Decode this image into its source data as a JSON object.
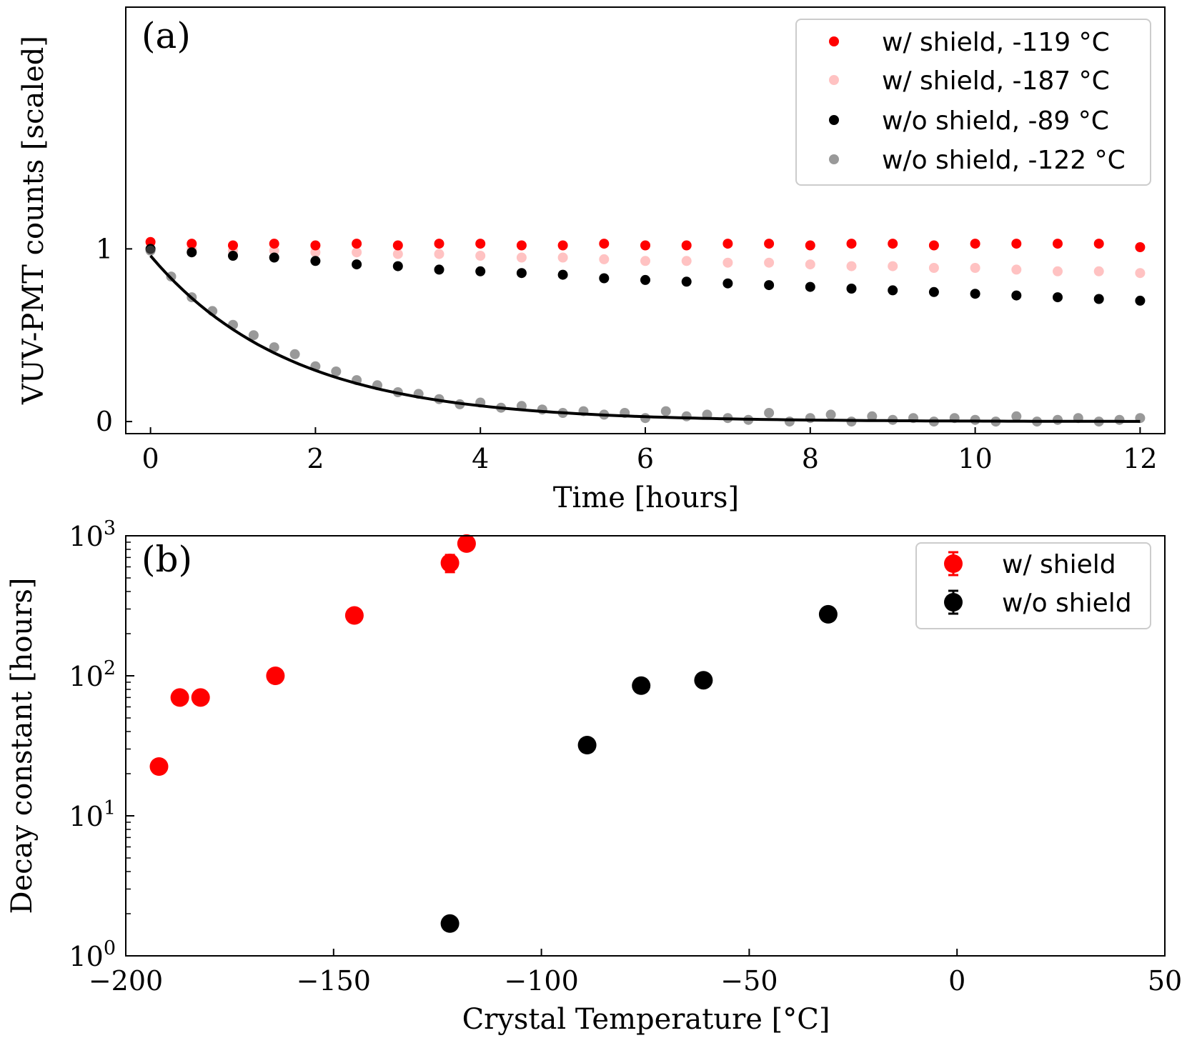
{
  "chart_data": [
    {
      "panel": "(a)",
      "type": "scatter",
      "xlabel": "Time [hours]",
      "ylabel": "VUV-PMT counts [scaled]",
      "xlim": [
        -0.3,
        12.3
      ],
      "ylim": [
        -0.07,
        2.4
      ],
      "xticks": [
        0,
        2,
        4,
        6,
        8,
        10,
        12
      ],
      "yticks": [
        0,
        1
      ],
      "legend_position": "top-right",
      "series": [
        {
          "name": "w/ shield, -119 °C",
          "color": "#ff0000",
          "opacity": 1.0,
          "x": [
            0,
            0.5,
            1,
            1.5,
            2,
            2.5,
            3,
            3.5,
            4,
            4.5,
            5,
            5.5,
            6,
            6.5,
            7,
            7.5,
            8,
            8.5,
            9,
            9.5,
            10,
            10.5,
            11,
            11.5,
            12
          ],
          "y": [
            1.04,
            1.03,
            1.02,
            1.03,
            1.02,
            1.03,
            1.02,
            1.03,
            1.03,
            1.02,
            1.02,
            1.03,
            1.02,
            1.02,
            1.03,
            1.03,
            1.02,
            1.03,
            1.03,
            1.02,
            1.03,
            1.03,
            1.03,
            1.03,
            1.01
          ]
        },
        {
          "name": "w/ shield, -187 °C",
          "color": "#ff9999",
          "opacity": 0.6,
          "x": [
            0,
            0.5,
            1,
            1.5,
            2,
            2.5,
            3,
            3.5,
            4,
            4.5,
            5,
            5.5,
            6,
            6.5,
            7,
            7.5,
            8,
            8.5,
            9,
            9.5,
            10,
            10.5,
            11,
            11.5,
            12
          ],
          "y": [
            1.0,
            1.0,
            0.99,
            0.99,
            0.98,
            0.98,
            0.97,
            0.97,
            0.96,
            0.95,
            0.95,
            0.94,
            0.93,
            0.93,
            0.92,
            0.92,
            0.91,
            0.9,
            0.9,
            0.89,
            0.89,
            0.88,
            0.87,
            0.87,
            0.86
          ]
        },
        {
          "name": "w/o shield, -89 °C",
          "color": "#000000",
          "opacity": 1.0,
          "x": [
            0,
            0.5,
            1,
            1.5,
            2,
            2.5,
            3,
            3.5,
            4,
            4.5,
            5,
            5.5,
            6,
            6.5,
            7,
            7.5,
            8,
            8.5,
            9,
            9.5,
            10,
            10.5,
            11,
            11.5,
            12
          ],
          "y": [
            1.0,
            0.98,
            0.96,
            0.95,
            0.93,
            0.91,
            0.9,
            0.88,
            0.87,
            0.86,
            0.85,
            0.83,
            0.82,
            0.81,
            0.8,
            0.79,
            0.78,
            0.77,
            0.76,
            0.75,
            0.74,
            0.73,
            0.72,
            0.71,
            0.7
          ]
        },
        {
          "name": "w/o shield, -122 °C",
          "color": "#555555",
          "opacity": 0.6,
          "x": [
            0,
            0.25,
            0.5,
            0.75,
            1,
            1.25,
            1.5,
            1.75,
            2,
            2.25,
            2.5,
            2.75,
            3,
            3.25,
            3.5,
            3.75,
            4,
            4.25,
            4.5,
            4.75,
            5,
            5.25,
            5.5,
            5.75,
            6,
            6.25,
            6.5,
            6.75,
            7,
            7.25,
            7.5,
            7.75,
            8,
            8.25,
            8.5,
            8.75,
            9,
            9.25,
            9.5,
            9.75,
            10,
            10.25,
            10.5,
            10.75,
            11,
            11.25,
            11.5,
            11.75,
            12
          ],
          "y": [
            0.99,
            0.84,
            0.72,
            0.64,
            0.56,
            0.5,
            0.43,
            0.39,
            0.32,
            0.29,
            0.24,
            0.21,
            0.17,
            0.16,
            0.13,
            0.1,
            0.11,
            0.08,
            0.09,
            0.07,
            0.05,
            0.06,
            0.04,
            0.05,
            0.02,
            0.06,
            0.03,
            0.04,
            0.02,
            0.01,
            0.05,
            0.0,
            0.02,
            0.04,
            0.0,
            0.03,
            0.01,
            0.02,
            0.0,
            0.02,
            0.01,
            0.0,
            0.03,
            0.0,
            0.01,
            0.02,
            0.0,
            0.01,
            0.02
          ]
        }
      ],
      "fit_curve": {
        "name": "exponential fit",
        "color": "#000000",
        "amplitude": 0.96,
        "tau_hours": 1.7,
        "x_range": [
          0,
          12
        ]
      }
    },
    {
      "panel": "(b)",
      "type": "scatter",
      "xlabel": "Crystal Temperature [°C]",
      "ylabel": "Decay constant [hours]",
      "xlim": [
        -200,
        50
      ],
      "ylim": [
        1,
        1000
      ],
      "yscale": "log",
      "xticks": [
        -200,
        -150,
        -100,
        -50,
        0,
        50
      ],
      "xtick_labels": [
        "−200",
        "−150",
        "−100",
        "−50",
        "0",
        "50"
      ],
      "yticks": [
        1,
        10,
        100,
        1000
      ],
      "ytick_bases": [
        "10",
        "10",
        "10",
        "10"
      ],
      "ytick_exps": [
        "0",
        "1",
        "2",
        "3"
      ],
      "legend_position": "top-right",
      "series": [
        {
          "name": "w/ shield",
          "color": "#ff0000",
          "x": [
            -192,
            -187,
            -182,
            -164,
            -145,
            -122,
            -118
          ],
          "y": [
            22.5,
            70,
            70,
            100,
            270,
            640,
            880
          ],
          "yerr": [
            0,
            0,
            0,
            0,
            0,
            90,
            0
          ]
        },
        {
          "name": "w/o shield",
          "color": "#000000",
          "x": [
            -122,
            -89,
            -76,
            -61,
            -31
          ],
          "y": [
            1.7,
            32,
            85,
            93,
            275
          ],
          "yerr": [
            0,
            0,
            0,
            0,
            0
          ]
        }
      ]
    }
  ]
}
